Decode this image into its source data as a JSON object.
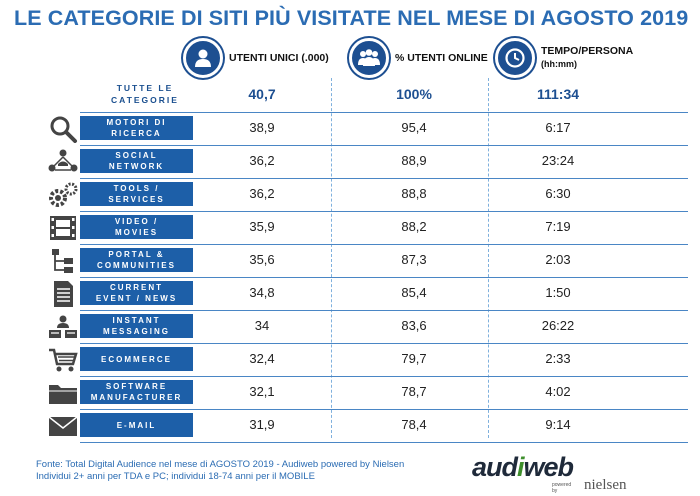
{
  "title": "LE CATEGORIE DI SITI PIÙ VISITATE NEL MESE DI AGOSTO 2019",
  "columns": [
    {
      "label": "UTENTI UNICI (.000)",
      "icon": "person-icon"
    },
    {
      "label": "% UTENTI ONLINE",
      "icon": "group-icon"
    },
    {
      "label_line1": "TEMPO/PERSONA",
      "label_line2": "(hh:mm)",
      "icon": "clock-icon"
    }
  ],
  "totals": {
    "label_line1": "TUTTE LE",
    "label_line2": "CATEGORIE",
    "utenti": "40,7",
    "percent": "100%",
    "tempo": "111:34"
  },
  "chart_data": {
    "type": "table",
    "title": "LE CATEGORIE DI SITI PIÙ VISITATE NEL MESE DI AGOSTO 2019",
    "headers": [
      "UTENTI UNICI (.000)",
      "% UTENTI ONLINE",
      "TEMPO/PERSONA (hh:mm)"
    ],
    "rows": [
      {
        "line1": "MOTORI DI",
        "line2": "RICERCA",
        "icon": "magnifier-icon",
        "utenti": "38,9",
        "percent": "95,4",
        "tempo": "6:17"
      },
      {
        "line1": "SOCIAL",
        "line2": "NETWORK",
        "icon": "network-icon",
        "utenti": "36,2",
        "percent": "88,9",
        "tempo": "23:24"
      },
      {
        "line1": "TOOLS /",
        "line2": "SERVICES",
        "icon": "gears-icon",
        "utenti": "36,2",
        "percent": "88,8",
        "tempo": "6:30"
      },
      {
        "line1": "VIDEO /",
        "line2": "MOVIES",
        "icon": "film-icon",
        "utenti": "35,9",
        "percent": "88,2",
        "tempo": "7:19"
      },
      {
        "line1": "PORTAL &",
        "line2": "COMMUNITIES",
        "icon": "tree-icon",
        "utenti": "35,6",
        "percent": "87,3",
        "tempo": "2:03"
      },
      {
        "line1": "CURRENT",
        "line2": "EVENT / NEWS",
        "icon": "document-icon",
        "utenti": "34,8",
        "percent": "85,4",
        "tempo": "1:50"
      },
      {
        "line1": "INSTANT",
        "line2": "MESSAGING",
        "icon": "chat-icon",
        "utenti": "34",
        "percent": "83,6",
        "tempo": "26:22"
      },
      {
        "line1": "ECOMMERCE",
        "line2": "",
        "icon": "cart-icon",
        "utenti": "32,4",
        "percent": "79,7",
        "tempo": "2:33"
      },
      {
        "line1": "SOFTWARE",
        "line2": "MANUFACTURER",
        "icon": "folder-icon",
        "utenti": "32,1",
        "percent": "78,7",
        "tempo": "4:02"
      },
      {
        "line1": "E-MAIL",
        "line2": "",
        "icon": "envelope-icon",
        "utenti": "31,9",
        "percent": "78,4",
        "tempo": "9:14"
      }
    ]
  },
  "footer": {
    "line1": "Fonte: Total Digital Audience nel mese di AGOSTO 2019 - Audiweb powered by Nielsen",
    "line2": "Individui 2+ anni per TDA e PC; individui 18-74 anni per il MOBILE"
  },
  "logo": {
    "brand_a": "aud",
    "brand_b": "web",
    "tagline": "powered by",
    "partner": "nielsen"
  },
  "colors": {
    "title": "#2b6cb3",
    "box": "#1d5fa8",
    "circle": "#1d4f91",
    "line": "#4a86c5",
    "logo_green": "#3e8f2c"
  }
}
